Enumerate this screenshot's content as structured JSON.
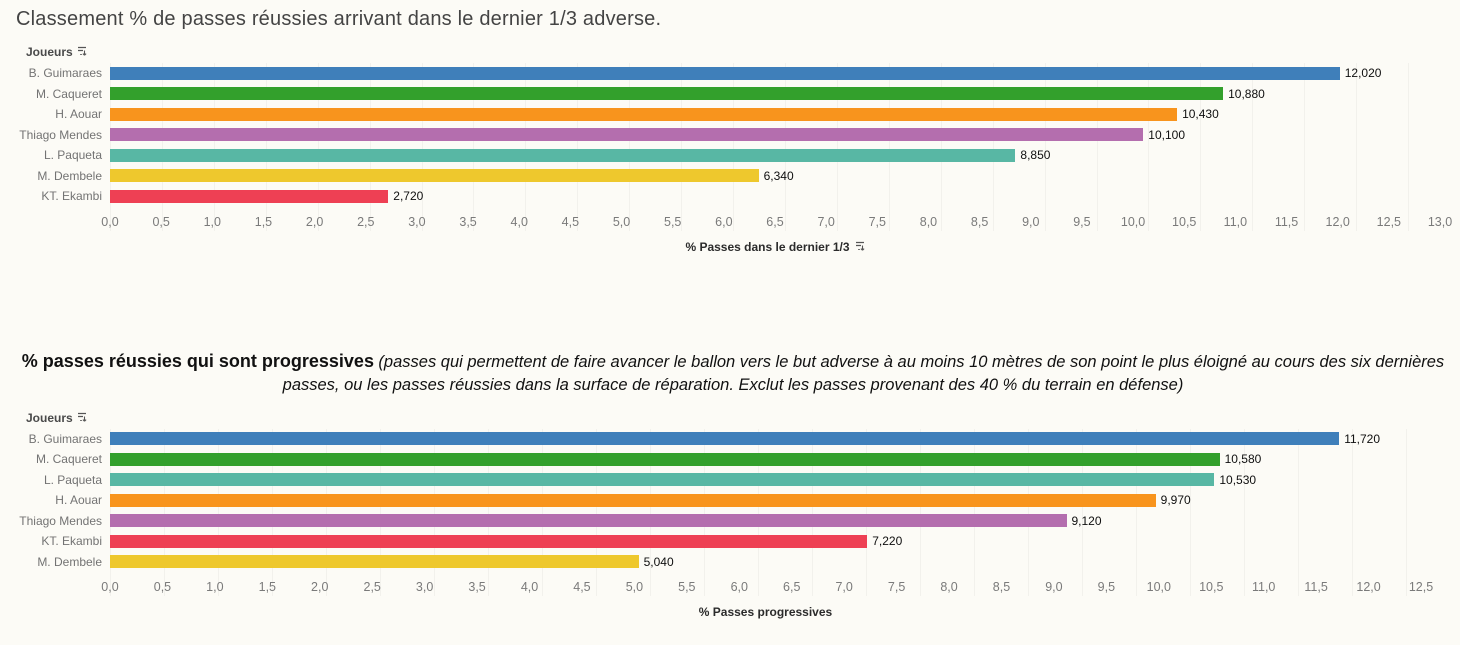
{
  "chart_data": [
    {
      "type": "bar",
      "orientation": "horizontal",
      "title": "Classement % de passes réussies arrivant dans le dernier 1/3 adverse.",
      "y_header": "Joueurs",
      "x_label": "% Passes dans le dernier 1/3",
      "xlim": [
        0,
        13
      ],
      "grid": true,
      "legend": "none",
      "x_tick_labels": [
        "0,0",
        "0,5",
        "1,0",
        "1,5",
        "2,0",
        "2,5",
        "3,0",
        "3,5",
        "4,0",
        "4,5",
        "5,0",
        "5,5",
        "6,0",
        "6,5",
        "7,0",
        "7,5",
        "8,0",
        "8,5",
        "9,0",
        "9,5",
        "10,0",
        "10,5",
        "11,0",
        "11,5",
        "12,0",
        "12,5",
        "13,0"
      ],
      "categories": [
        "B. Guimaraes",
        "M. Caqueret",
        "H. Aouar",
        "Thiago Mendes",
        "L. Paqueta",
        "M. Dembele",
        "KT. Ekambi"
      ],
      "values": [
        12.02,
        10.88,
        10.43,
        10.1,
        8.85,
        6.34,
        2.72
      ],
      "value_labels": [
        "12,020",
        "10,880",
        "10,430",
        "10,100",
        "8,850",
        "6,340",
        "2,720"
      ],
      "colors": [
        "#3f7fba",
        "#33a02c",
        "#f8941d",
        "#b46eae",
        "#58b7a4",
        "#eec82d",
        "#ee4054"
      ]
    },
    {
      "type": "bar",
      "orientation": "horizontal",
      "title_main": "% passes réussies qui sont progressives",
      "title_note": "(passes qui permettent de faire avancer le ballon vers le but adverse à au moins 10 mètres de son point le plus éloigné au cours des six dernières passes, ou les passes réussies dans la surface de réparation. Exclut les passes provenant des 40 % du terrain en défense)",
      "y_header": "Joueurs",
      "x_label": "% Passes progressives",
      "xlim": [
        0,
        12.5
      ],
      "grid": true,
      "legend": "none",
      "x_tick_labels": [
        "0,0",
        "0,5",
        "1,0",
        "1,5",
        "2,0",
        "2,5",
        "3,0",
        "3,5",
        "4,0",
        "4,5",
        "5,0",
        "5,5",
        "6,0",
        "6,5",
        "7,0",
        "7,5",
        "8,0",
        "8,5",
        "9,0",
        "9,5",
        "10,0",
        "10,5",
        "11,0",
        "11,5",
        "12,0",
        "12,5"
      ],
      "categories": [
        "B. Guimaraes",
        "M. Caqueret",
        "L. Paqueta",
        "H. Aouar",
        "Thiago Mendes",
        "KT. Ekambi",
        "M. Dembele"
      ],
      "values": [
        11.72,
        10.58,
        10.53,
        9.97,
        9.12,
        7.22,
        5.04
      ],
      "value_labels": [
        "11,720",
        "10,580",
        "10,530",
        "9,970",
        "9,120",
        "7,220",
        "5,040"
      ],
      "colors": [
        "#3f7fba",
        "#33a02c",
        "#58b7a4",
        "#f8941d",
        "#b46eae",
        "#ee4054",
        "#eec82d"
      ]
    }
  ]
}
